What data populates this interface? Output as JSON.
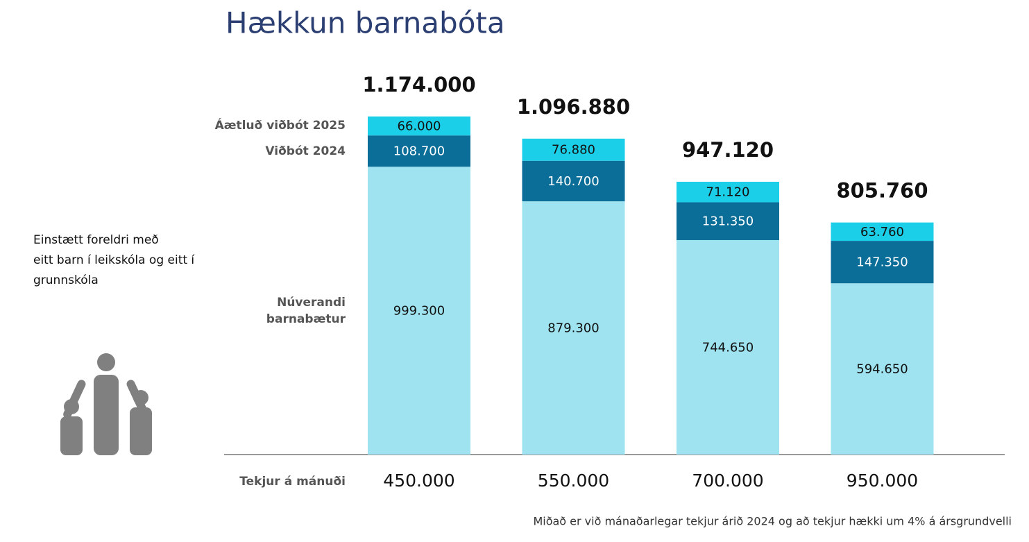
{
  "chart_data": {
    "type": "stacked_bar",
    "title": "Hækkun barnabóta",
    "description_lines": [
      "Einstætt foreldri með",
      "eitt barn í leikskóla og eitt í",
      "grunnskóla"
    ],
    "x_label": "Tekjur á mánuði",
    "footnote": "Miðað er við mánaðarlegar tekjur árið 2024 og að tekjur hækki um 4% á ársgrundvelli",
    "categories": [
      "450.000",
      "550.000",
      "700.000",
      "950.000"
    ],
    "ylim": [
      0,
      1200000
    ],
    "series": [
      {
        "name": "Núverandi barnabætur",
        "color": "#9ee3ef",
        "label_color": "#111111",
        "values": [
          999300,
          879300,
          744650,
          594650
        ],
        "value_labels": [
          "999.300",
          "879.300",
          "744.650",
          "594.650"
        ]
      },
      {
        "name": "Viðbót 2024",
        "color": "#0b6e99",
        "label_color": "#ffffff",
        "values": [
          108700,
          140700,
          131350,
          147350
        ],
        "value_labels": [
          "108.700",
          "140.700",
          "131.350",
          "147.350"
        ]
      },
      {
        "name": "Áætluð viðbót 2025",
        "color": "#1ccfe8",
        "label_color": "#111111",
        "values": [
          66000,
          76880,
          71120,
          63760
        ],
        "value_labels": [
          "66.000",
          "76.880",
          "71.120",
          "63.760"
        ]
      }
    ],
    "totals": {
      "values": [
        1174000,
        1096880,
        947120,
        805760
      ],
      "value_labels": [
        "1.174.000",
        "1.096.880",
        "947.120",
        "805.760"
      ]
    }
  }
}
